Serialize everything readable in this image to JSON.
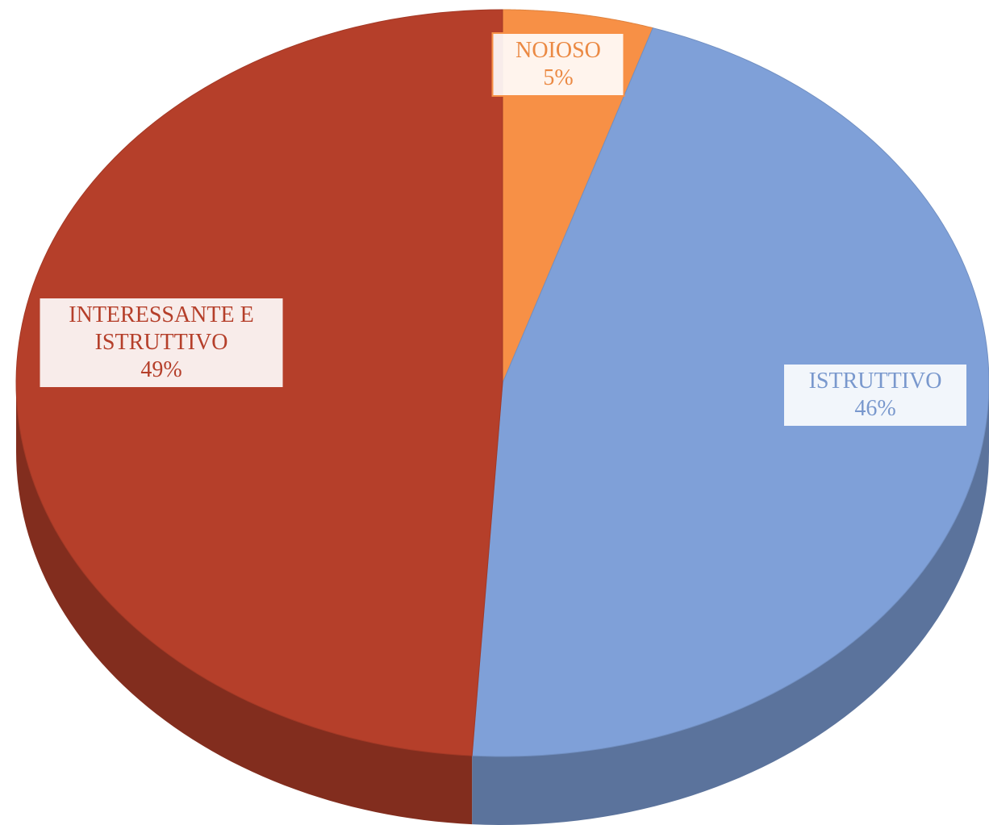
{
  "chart_data": {
    "type": "pie3d",
    "categories": [
      "NOIOSO",
      "ISTRUTTIVO",
      "INTERESSANTE E ISTRUTTIVO"
    ],
    "values": [
      5,
      46,
      49
    ],
    "value_labels": [
      "5%",
      "46%",
      "49%"
    ],
    "colors": [
      "#f79046",
      "#7fa0d8",
      "#b53f2a"
    ],
    "start_angle": -90,
    "direction": "clockwise"
  }
}
